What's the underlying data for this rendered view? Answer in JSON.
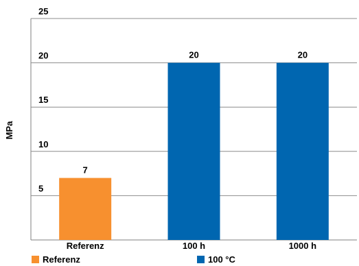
{
  "chart_data": {
    "type": "bar",
    "ylabel": "MPa",
    "ylim": [
      0,
      25
    ],
    "yticks": [
      5,
      10,
      15,
      20,
      25
    ],
    "grid": true,
    "categories": [
      "Referenz",
      "100 h",
      "1000 h"
    ],
    "values": [
      7,
      20,
      20
    ],
    "data_labels": [
      "7",
      "20",
      "20"
    ],
    "bar_series": [
      "Referenz",
      "100 °C",
      "100 °C"
    ],
    "legend_position": "bottom",
    "legend": [
      {
        "name": "Referenz",
        "color": "#F7902F"
      },
      {
        "name": "100 °C",
        "color": "#0066B0"
      }
    ]
  }
}
